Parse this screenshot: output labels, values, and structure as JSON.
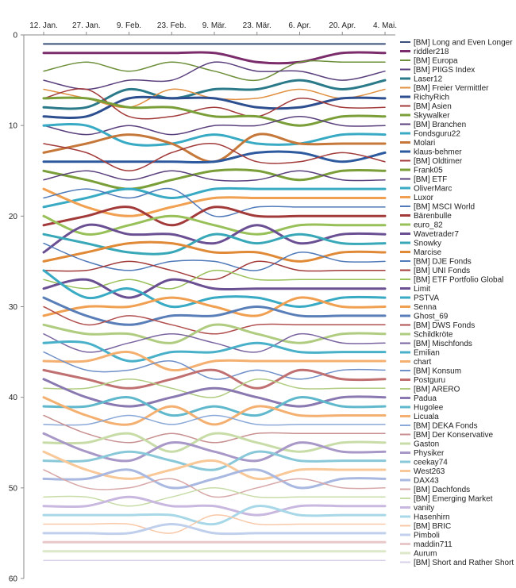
{
  "chart_data": {
    "type": "line",
    "title": "",
    "xlabel": "",
    "ylabel": "",
    "ylim": [
      0,
      60
    ],
    "y_reversed": true,
    "y_ticks": [
      0,
      10,
      20,
      30,
      40,
      50,
      60
    ],
    "x_ticks": [
      "12. Jan.",
      "27. Jan.",
      "9. Feb.",
      "23. Feb.",
      "9. Mär.",
      "23. Mär.",
      "6. Apr.",
      "20. Apr.",
      "4. Mai."
    ],
    "grid": false,
    "legend": "right",
    "x": [
      0,
      1,
      2,
      3,
      4,
      5,
      6,
      7,
      8
    ],
    "series": [
      {
        "name": "[BM] Long and Even Longer",
        "color": "#3a4f7a",
        "width": 2.0,
        "values": [
          1,
          1,
          1,
          1,
          1,
          1,
          1,
          1,
          1
        ]
      },
      {
        "name": "riddler218",
        "color": "#7b2d6b",
        "width": 3.0,
        "values": [
          2,
          2,
          2,
          2,
          2,
          3,
          3,
          2,
          2
        ]
      },
      {
        "name": "[BM] Europa",
        "color": "#6e8f3a",
        "width": 1.5,
        "values": [
          4,
          3,
          4,
          3,
          4,
          5,
          3,
          3,
          3
        ]
      },
      {
        "name": "[BM] PIIGS Index",
        "color": "#5a3f7d",
        "width": 1.5,
        "values": [
          5,
          6,
          5,
          5,
          3,
          4,
          4,
          5,
          4
        ]
      },
      {
        "name": "Laser12",
        "color": "#2a7a8a",
        "width": 3.0,
        "values": [
          8,
          8,
          6,
          7,
          6,
          6,
          5,
          6,
          5
        ]
      },
      {
        "name": "[BM] Freier Vermittler",
        "color": "#e09040",
        "width": 1.5,
        "values": [
          6,
          7,
          8,
          6,
          7,
          7,
          6,
          7,
          6
        ]
      },
      {
        "name": "RichyRich",
        "color": "#2e4f8f",
        "width": 3.0,
        "values": [
          9,
          9,
          7,
          7,
          7,
          8,
          8,
          7,
          7
        ]
      },
      {
        "name": "[BM] Asien",
        "color": "#a23a3a",
        "width": 1.5,
        "values": [
          7,
          6,
          9,
          9,
          8,
          9,
          7,
          8,
          8
        ]
      },
      {
        "name": "Skywalker",
        "color": "#7a9e38",
        "width": 3.0,
        "values": [
          7,
          7,
          8,
          8,
          9,
          9,
          10,
          9,
          9
        ]
      },
      {
        "name": "[BM] Branchen",
        "color": "#5a3f7d",
        "width": 1.5,
        "values": [
          10,
          11,
          10,
          11,
          10,
          10,
          9,
          10,
          10
        ]
      },
      {
        "name": "Fondsguru22",
        "color": "#38aac4",
        "width": 3.0,
        "values": [
          10,
          10,
          12,
          12,
          11,
          12,
          12,
          11,
          11
        ]
      },
      {
        "name": "Molari",
        "color": "#c6783a",
        "width": 3.0,
        "values": [
          13,
          12,
          11,
          12,
          14,
          11,
          12,
          12,
          12
        ]
      },
      {
        "name": "klaus-behmer",
        "color": "#2d5a9e",
        "width": 3.0,
        "values": [
          14,
          14,
          14,
          14,
          14,
          13,
          13,
          14,
          13
        ]
      },
      {
        "name": "[BM] Oldtimer",
        "color": "#a23a3a",
        "width": 1.5,
        "values": [
          12,
          13,
          15,
          13,
          12,
          14,
          14,
          13,
          14
        ]
      },
      {
        "name": "Frank05",
        "color": "#7a9e38",
        "width": 3.0,
        "values": [
          15,
          16,
          17,
          16,
          15,
          15,
          16,
          15,
          15
        ]
      },
      {
        "name": "[BM] ETF",
        "color": "#5a3f7d",
        "width": 1.5,
        "values": [
          16,
          15,
          16,
          15,
          16,
          16,
          15,
          16,
          16
        ]
      },
      {
        "name": "OliverMarc",
        "color": "#38aac4",
        "width": 3.0,
        "values": [
          19,
          18,
          17,
          18,
          17,
          17,
          17,
          17,
          17
        ]
      },
      {
        "name": "Luxor",
        "color": "#f0a050",
        "width": 3.0,
        "values": [
          17,
          19,
          20,
          19,
          18,
          18,
          18,
          18,
          18
        ]
      },
      {
        "name": "[BM] MSCI World",
        "color": "#4f79b8",
        "width": 1.5,
        "values": [
          18,
          17,
          18,
          17,
          20,
          19,
          19,
          19,
          19
        ]
      },
      {
        "name": "Bärenbulle",
        "color": "#a23a3a",
        "width": 3.0,
        "values": [
          21,
          20,
          19,
          21,
          19,
          20,
          20,
          20,
          20
        ]
      },
      {
        "name": "euro_82",
        "color": "#98c058",
        "width": 3.0,
        "values": [
          20,
          22,
          21,
          20,
          21,
          22,
          21,
          21,
          21
        ]
      },
      {
        "name": "Wavetrader7",
        "color": "#6a4f93",
        "width": 3.0,
        "values": [
          24,
          21,
          22,
          22,
          23,
          21,
          23,
          22,
          22
        ]
      },
      {
        "name": "Snowky",
        "color": "#38a8b8",
        "width": 3.0,
        "values": [
          22,
          23,
          24,
          24,
          22,
          23,
          22,
          23,
          23
        ]
      },
      {
        "name": "Marcise",
        "color": "#e08a38",
        "width": 3.0,
        "values": [
          25,
          24,
          23,
          23,
          24,
          24,
          25,
          24,
          24
        ]
      },
      {
        "name": "[BM] DJE Fonds",
        "color": "#4f79b8",
        "width": 1.5,
        "values": [
          23,
          25,
          26,
          25,
          25,
          26,
          24,
          25,
          25
        ]
      },
      {
        "name": "[BM] UNI Fonds",
        "color": "#a23a3a",
        "width": 1.5,
        "values": [
          26,
          26,
          25,
          26,
          27,
          25,
          26,
          26,
          26
        ]
      },
      {
        "name": "[BM] ETF Portfolio Global",
        "color": "#98c058",
        "width": 1.5,
        "values": [
          27,
          28,
          27,
          28,
          26,
          27,
          27,
          27,
          27
        ]
      },
      {
        "name": "Limit",
        "color": "#6a4f93",
        "width": 3.0,
        "values": [
          28,
          27,
          29,
          27,
          28,
          28,
          28,
          28,
          28
        ]
      },
      {
        "name": "PSTVA",
        "color": "#38aac4",
        "width": 3.0,
        "values": [
          26,
          29,
          28,
          30,
          29,
          29,
          30,
          29,
          29
        ]
      },
      {
        "name": "Senna",
        "color": "#f0a050",
        "width": 3.0,
        "values": [
          31,
          30,
          30,
          29,
          30,
          31,
          29,
          30,
          30
        ]
      },
      {
        "name": "Ghost_69",
        "color": "#5a7fb8",
        "width": 3.0,
        "values": [
          29,
          31,
          32,
          31,
          31,
          30,
          31,
          31,
          31
        ]
      },
      {
        "name": "[BM] DWS Fonds",
        "color": "#b25050",
        "width": 1.5,
        "values": [
          30,
          32,
          31,
          32,
          33,
          32,
          32,
          32,
          32
        ]
      },
      {
        "name": "Schildkröte",
        "color": "#b0cc80",
        "width": 3.0,
        "values": [
          32,
          33,
          33,
          34,
          32,
          33,
          34,
          33,
          33
        ]
      },
      {
        "name": "[BM] Mischfonds",
        "color": "#7a64a0",
        "width": 1.5,
        "values": [
          33,
          35,
          34,
          33,
          34,
          35,
          33,
          34,
          34
        ]
      },
      {
        "name": "Emilian",
        "color": "#48b0c8",
        "width": 3.0,
        "values": [
          34,
          34,
          36,
          35,
          35,
          34,
          35,
          35,
          35
        ]
      },
      {
        "name": "chart",
        "color": "#f4b070",
        "width": 3.0,
        "values": [
          36,
          36,
          35,
          37,
          36,
          36,
          36,
          36,
          36
        ]
      },
      {
        "name": "[BM] Konsum",
        "color": "#6f8fc8",
        "width": 1.5,
        "values": [
          35,
          37,
          37,
          36,
          38,
          37,
          38,
          37,
          37
        ]
      },
      {
        "name": "Postguru",
        "color": "#c07070",
        "width": 3.0,
        "values": [
          37,
          38,
          39,
          38,
          37,
          39,
          37,
          38,
          38
        ]
      },
      {
        "name": "[BM] ARERO",
        "color": "#b0cc80",
        "width": 1.5,
        "values": [
          39,
          39,
          38,
          39,
          40,
          38,
          39,
          39,
          39
        ]
      },
      {
        "name": "Padua",
        "color": "#8a78b0",
        "width": 3.0,
        "values": [
          38,
          40,
          41,
          40,
          39,
          40,
          41,
          40,
          40
        ]
      },
      {
        "name": "Hugolee",
        "color": "#60b8cc",
        "width": 3.0,
        "values": [
          41,
          41,
          40,
          42,
          41,
          42,
          40,
          41,
          41
        ]
      },
      {
        "name": "Licuala",
        "color": "#f4b070",
        "width": 3.0,
        "values": [
          40,
          42,
          43,
          41,
          43,
          41,
          42,
          42,
          42
        ]
      },
      {
        "name": "[BM] DEKA Fonds",
        "color": "#8aa8d8",
        "width": 1.5,
        "values": [
          43,
          43,
          42,
          43,
          42,
          43,
          43,
          43,
          43
        ]
      },
      {
        "name": "[BM] Der Konservative",
        "color": "#c89090",
        "width": 1.5,
        "values": [
          42,
          44,
          45,
          44,
          45,
          44,
          44,
          44,
          44
        ]
      },
      {
        "name": "Gaston",
        "color": "#c8dca8",
        "width": 3.0,
        "values": [
          45,
          45,
          44,
          46,
          44,
          45,
          46,
          45,
          45
        ]
      },
      {
        "name": "Physiker",
        "color": "#a898c8",
        "width": 3.0,
        "values": [
          44,
          46,
          47,
          45,
          46,
          47,
          45,
          46,
          46
        ]
      },
      {
        "name": "ceekay74",
        "color": "#88c8d8",
        "width": 3.0,
        "values": [
          47,
          47,
          46,
          47,
          48,
          46,
          47,
          47,
          47
        ]
      },
      {
        "name": "West263",
        "color": "#f8c898",
        "width": 3.0,
        "values": [
          46,
          48,
          49,
          48,
          47,
          49,
          48,
          48,
          48
        ]
      },
      {
        "name": "DAX43",
        "color": "#a8b8e0",
        "width": 3.0,
        "values": [
          49,
          49,
          48,
          50,
          49,
          48,
          50,
          49,
          49
        ]
      },
      {
        "name": "[BM] Dachfonds",
        "color": "#d8a8a8",
        "width": 1.5,
        "values": [
          48,
          50,
          50,
          49,
          51,
          50,
          49,
          50,
          50
        ]
      },
      {
        "name": "[BM] Emerging Market",
        "color": "#c8dca8",
        "width": 1.5,
        "values": [
          51,
          51,
          52,
          51,
          50,
          51,
          51,
          51,
          51
        ]
      },
      {
        "name": "vanity",
        "color": "#c8b8e0",
        "width": 3.0,
        "values": [
          52,
          52,
          51,
          52,
          52,
          53,
          52,
          52,
          52
        ]
      },
      {
        "name": "Hasenhirn",
        "color": "#a8d8e8",
        "width": 3.0,
        "values": [
          53,
          53,
          53,
          53,
          54,
          52,
          53,
          53,
          53
        ]
      },
      {
        "name": "[BM] BRIC",
        "color": "#f8c8a8",
        "width": 1.5,
        "values": [
          54,
          54,
          54,
          55,
          53,
          54,
          54,
          54,
          54
        ]
      },
      {
        "name": "Pimboli",
        "color": "#c0d0ec",
        "width": 3.0,
        "values": [
          55,
          55,
          55,
          54,
          55,
          55,
          55,
          55,
          55
        ]
      },
      {
        "name": "maddin711",
        "color": "#e8c8c8",
        "width": 3.0,
        "values": [
          56,
          56,
          56,
          56,
          56,
          56,
          56,
          56,
          56
        ]
      },
      {
        "name": "Aurum",
        "color": "#dce8c8",
        "width": 3.0,
        "values": [
          57,
          57,
          57,
          57,
          57,
          57,
          57,
          57,
          57
        ]
      },
      {
        "name": "[BM] Short and Rather Short",
        "color": "#d8d0e8",
        "width": 1.5,
        "values": [
          58,
          58,
          58,
          58,
          58,
          58,
          58,
          58,
          58
        ]
      }
    ]
  }
}
